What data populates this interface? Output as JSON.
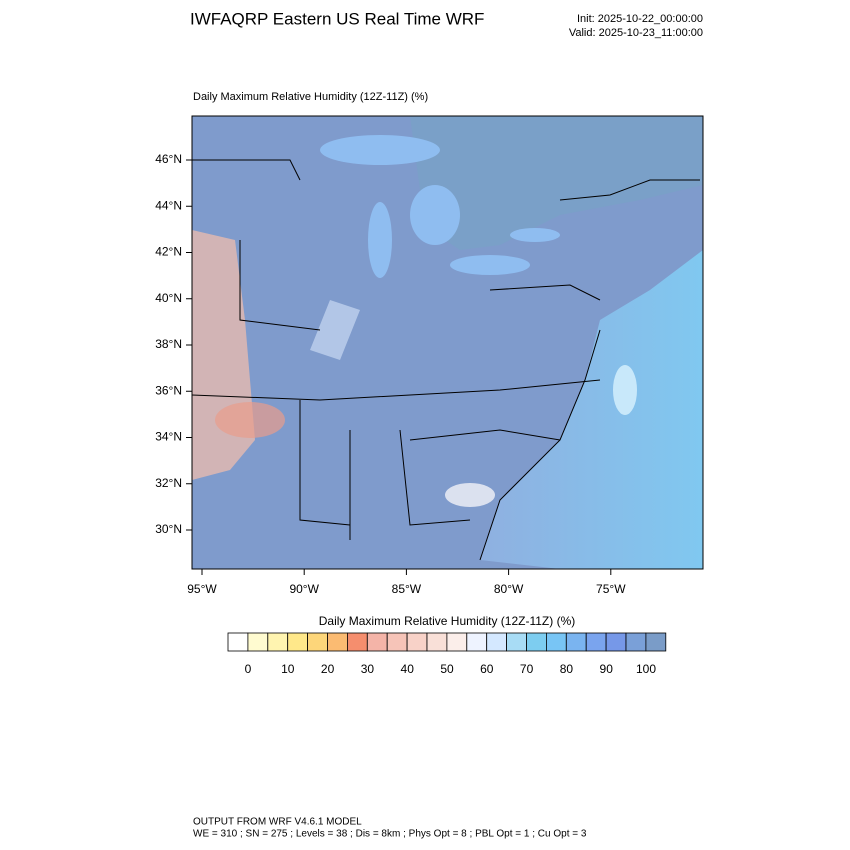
{
  "header": {
    "title": "IWFAQRP Eastern US Real Time WRF",
    "init": "Init: 2025-10-22_00:00:00",
    "valid": "Valid: 2025-10-23_11:00:00"
  },
  "map": {
    "title": "Daily Maximum Relative Humidity (12Z-11Z)   (%)",
    "lat_labels": [
      "46°N",
      "44°N",
      "42°N",
      "40°N",
      "38°N",
      "36°N",
      "34°N",
      "32°N",
      "30°N"
    ],
    "lon_labels": [
      "95°W",
      "90°W",
      "85°W",
      "80°W",
      "75°W"
    ]
  },
  "colorbar": {
    "title": "Daily Maximum Relative Humidity (12Z-11Z)  (%)",
    "labels": [
      0,
      10,
      20,
      30,
      40,
      50,
      60,
      70,
      80,
      90,
      100
    ],
    "colors": [
      "#ffffff",
      "#fffbd0",
      "#fff4b0",
      "#ffe88a",
      "#fdd67a",
      "#fbbb72",
      "#f58e6e",
      "#f4b4a8",
      "#f6c4b8",
      "#f8d2c8",
      "#f9e0d8",
      "#fbeeea",
      "#eef3ff",
      "#d4e8ff",
      "#a8dcf5",
      "#7dcdf0",
      "#78c5f5",
      "#7ab4f0",
      "#7aa4ee",
      "#7698e8",
      "#7aa0d8",
      "#7a9cc8"
    ]
  },
  "footer": {
    "line1": "OUTPUT FROM WRF V4.6.1 MODEL",
    "line2": "WE = 310 ; SN = 275 ; Levels = 38 ; Dis = 8km ; Phys Opt = 8 ; PBL Opt = 1 ; Cu Opt = 3"
  }
}
